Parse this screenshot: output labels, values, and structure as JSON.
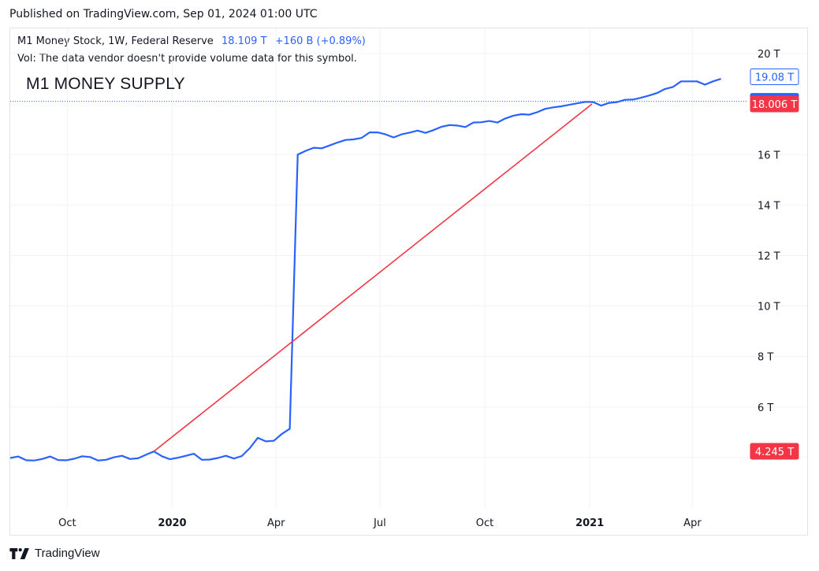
{
  "header": {
    "published": "Published on TradingView.com, Sep 01, 2024 01:00 UTC"
  },
  "legend": {
    "symbol": "M1 Money Stock, 1W, Federal Reserve",
    "last": "18.109 T",
    "change": "+160 B (+0.89%)",
    "vol_note": "Vol: The data vendor doesn't provide volume data for this symbol."
  },
  "annotation": "M1 MONEY SUPPLY",
  "footer": {
    "brand": "TradingView"
  },
  "colors": {
    "series": "#2962ff",
    "trendline": "#f23645",
    "accent_blue": "#2962ff",
    "accent_red": "#f23645"
  },
  "chart_data": {
    "type": "line",
    "y_axis": {
      "ticks": [
        "20 T",
        "16 T",
        "14 T",
        "12 T",
        "10 T",
        "8 T",
        "6 T"
      ],
      "tick_values": [
        20,
        16,
        14,
        12,
        10,
        8,
        6
      ],
      "unit": "T",
      "range": [
        2.0,
        21.0
      ]
    },
    "x_axis": {
      "range": [
        "2019-08-12",
        "2021-05-17"
      ],
      "ticks": [
        {
          "label": "Oct",
          "date": "2019-10-01",
          "bold": false
        },
        {
          "label": "2020",
          "date": "2020-01-01",
          "bold": true
        },
        {
          "label": "Apr",
          "date": "2020-04-01",
          "bold": false
        },
        {
          "label": "Jul",
          "date": "2020-07-01",
          "bold": false
        },
        {
          "label": "Oct",
          "date": "2020-10-01",
          "bold": false
        },
        {
          "label": "2021",
          "date": "2021-01-01",
          "bold": true
        },
        {
          "label": "Apr",
          "date": "2021-04-01",
          "bold": false
        }
      ]
    },
    "series": [
      {
        "values": [
          [
            "2019-08-12",
            3.98
          ],
          [
            "2019-08-19",
            4.04
          ],
          [
            "2019-08-26",
            3.89
          ],
          [
            "2019-09-02",
            3.88
          ],
          [
            "2019-09-09",
            3.94
          ],
          [
            "2019-09-16",
            4.04
          ],
          [
            "2019-09-23",
            3.9
          ],
          [
            "2019-09-30",
            3.89
          ],
          [
            "2019-10-07",
            3.95
          ],
          [
            "2019-10-14",
            4.05
          ],
          [
            "2019-10-21",
            4.02
          ],
          [
            "2019-10-28",
            3.88
          ],
          [
            "2019-11-04",
            3.91
          ],
          [
            "2019-11-11",
            4.01
          ],
          [
            "2019-11-18",
            4.07
          ],
          [
            "2019-11-25",
            3.94
          ],
          [
            "2019-12-02",
            3.97
          ],
          [
            "2019-12-09",
            4.11
          ],
          [
            "2019-12-16",
            4.24
          ],
          [
            "2019-12-23",
            4.05
          ],
          [
            "2019-12-30",
            3.93
          ],
          [
            "2020-01-06",
            3.99
          ],
          [
            "2020-01-13",
            4.07
          ],
          [
            "2020-01-20",
            4.15
          ],
          [
            "2020-01-27",
            3.91
          ],
          [
            "2020-02-03",
            3.92
          ],
          [
            "2020-02-10",
            3.98
          ],
          [
            "2020-02-17",
            4.07
          ],
          [
            "2020-02-24",
            3.96
          ],
          [
            "2020-03-02",
            4.06
          ],
          [
            "2020-03-09",
            4.37
          ],
          [
            "2020-03-16",
            4.78
          ],
          [
            "2020-03-23",
            4.64
          ],
          [
            "2020-03-30",
            4.66
          ],
          [
            "2020-04-06",
            4.93
          ],
          [
            "2020-04-13",
            5.14
          ],
          [
            "2020-04-20",
            16.0
          ],
          [
            "2020-04-27",
            16.15
          ],
          [
            "2020-05-04",
            16.27
          ],
          [
            "2020-05-11",
            16.25
          ],
          [
            "2020-05-18",
            16.36
          ],
          [
            "2020-05-25",
            16.48
          ],
          [
            "2020-06-01",
            16.58
          ],
          [
            "2020-06-08",
            16.6
          ],
          [
            "2020-06-15",
            16.66
          ],
          [
            "2020-06-22",
            16.88
          ],
          [
            "2020-06-29",
            16.88
          ],
          [
            "2020-07-06",
            16.8
          ],
          [
            "2020-07-13",
            16.68
          ],
          [
            "2020-07-20",
            16.8
          ],
          [
            "2020-07-27",
            16.87
          ],
          [
            "2020-08-03",
            16.95
          ],
          [
            "2020-08-10",
            16.86
          ],
          [
            "2020-08-17",
            16.97
          ],
          [
            "2020-08-24",
            17.1
          ],
          [
            "2020-08-31",
            17.17
          ],
          [
            "2020-09-07",
            17.15
          ],
          [
            "2020-09-14",
            17.09
          ],
          [
            "2020-09-21",
            17.27
          ],
          [
            "2020-09-28",
            17.28
          ],
          [
            "2020-10-05",
            17.33
          ],
          [
            "2020-10-12",
            17.27
          ],
          [
            "2020-10-19",
            17.43
          ],
          [
            "2020-10-26",
            17.54
          ],
          [
            "2020-11-02",
            17.6
          ],
          [
            "2020-11-09",
            17.58
          ],
          [
            "2020-11-16",
            17.68
          ],
          [
            "2020-11-23",
            17.81
          ],
          [
            "2020-11-30",
            17.87
          ],
          [
            "2020-12-07",
            17.91
          ],
          [
            "2020-12-14",
            17.97
          ],
          [
            "2020-12-21",
            18.03
          ],
          [
            "2020-12-28",
            18.09
          ],
          [
            "2021-01-04",
            18.08
          ],
          [
            "2021-01-11",
            17.94
          ],
          [
            "2021-01-18",
            18.05
          ],
          [
            "2021-01-25",
            18.08
          ],
          [
            "2021-02-01",
            18.17
          ],
          [
            "2021-02-08",
            18.18
          ],
          [
            "2021-02-15",
            18.25
          ],
          [
            "2021-02-22",
            18.34
          ],
          [
            "2021-03-01",
            18.44
          ],
          [
            "2021-03-08",
            18.6
          ],
          [
            "2021-03-15",
            18.68
          ],
          [
            "2021-03-22",
            18.9
          ],
          [
            "2021-03-29",
            18.9
          ],
          [
            "2021-04-05",
            18.9
          ],
          [
            "2021-04-12",
            18.77
          ],
          [
            "2021-04-19",
            18.9
          ],
          [
            "2021-04-26",
            19.0
          ]
        ]
      }
    ],
    "trendline": {
      "points": [
        [
          "2019-12-16",
          4.245
        ],
        [
          "2021-01-03",
          18.006
        ]
      ]
    },
    "price_labels": [
      {
        "text": "19.08 T",
        "value": 19.08,
        "style": "outline-blue"
      },
      {
        "text": "18.109 T",
        "value": 18.109,
        "style": "fill-blue"
      },
      {
        "text": "18.006 T",
        "value": 18.006,
        "style": "fill-red"
      },
      {
        "text": "4.245 T",
        "value": 4.245,
        "style": "fill-red"
      }
    ],
    "last_value_line": 18.109,
    "grid": true,
    "legend_position": "top-left"
  }
}
